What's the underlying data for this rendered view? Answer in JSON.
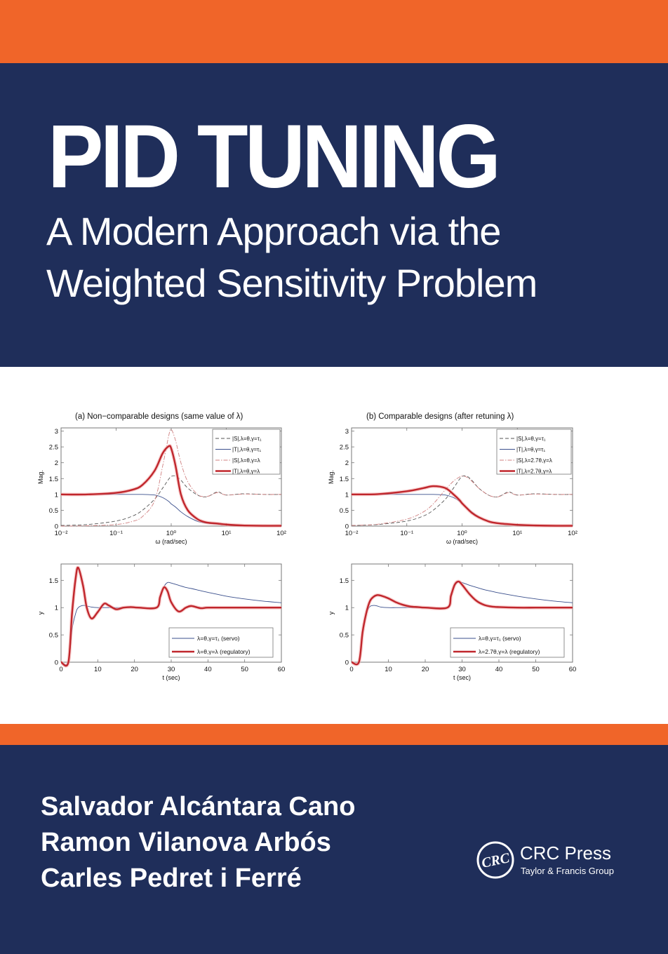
{
  "colors": {
    "accent_orange": "#f06529",
    "navy": "#1f2e5a",
    "text_on_dark": "#ffffff",
    "series_red": "#c0262c",
    "series_blue": "#3a4f8c",
    "series_gray_dashed": "#555555",
    "series_pink_dashdot": "#d08080"
  },
  "cover": {
    "title": "PID TUNING",
    "subtitle_line1": "A Modern Approach via the",
    "subtitle_line2": "Weighted Sensitivity Problem",
    "authors": [
      "Salvador Alcántara Cano",
      "Ramon Vilanova Arbós",
      "Carles Pedret i Ferré"
    ],
    "publisher": {
      "logo_text": "CRC",
      "name": "CRC Press",
      "group": "Taylor & Francis Group"
    }
  },
  "figure": {
    "panel_a_title": "(a) Non−comparable designs (same value of λ)",
    "panel_b_title": "(b) Comparable designs (after retuning λ)"
  },
  "chart_data": [
    {
      "id": "a-freq",
      "type": "line",
      "title": "(a) Non−comparable designs (same value of λ)",
      "xlabel": "ω (rad/sec)",
      "ylabel": "Mag.",
      "xscale": "log",
      "xlim": [
        0.01,
        100
      ],
      "ylim": [
        0,
        3.1
      ],
      "xticks": [
        "10⁻²",
        "10⁻¹",
        "10⁰",
        "10¹",
        "10²"
      ],
      "yticks": [
        "0",
        "0.5",
        "1",
        "1.5",
        "2",
        "2.5",
        "3"
      ],
      "legend_position": "upper right",
      "legend": [
        "|S|,λ=θ,γ=τ₁",
        "|T|,λ=θ,γ=τ₁",
        "|S|,λ=θ,γ=λ",
        "|T|,λ=θ,γ=λ"
      ],
      "x": [
        0.01,
        0.03,
        0.1,
        0.2,
        0.3,
        0.5,
        0.7,
        0.9,
        1.0,
        1.2,
        1.5,
        2,
        3,
        4,
        5,
        7,
        10,
        20,
        50,
        100
      ],
      "series": [
        {
          "name": "|S|,λ=θ,γ=τ₁",
          "style": "dashed",
          "values": [
            0.02,
            0.05,
            0.16,
            0.32,
            0.5,
            0.85,
            1.2,
            1.48,
            1.57,
            1.58,
            1.45,
            1.2,
            0.98,
            0.92,
            0.96,
            1.08,
            0.98,
            1.02,
            1.0,
            1.0
          ]
        },
        {
          "name": "|T|,λ=θ,γ=τ₁",
          "style": "solid-thin",
          "values": [
            1.0,
            1.0,
            1.0,
            1.0,
            1.0,
            0.98,
            0.9,
            0.78,
            0.7,
            0.6,
            0.45,
            0.3,
            0.15,
            0.1,
            0.08,
            0.06,
            0.04,
            0.02,
            0.01,
            0.01
          ]
        },
        {
          "name": "|S|,λ=θ,γ=λ",
          "style": "dashdot",
          "values": [
            0.0,
            0.01,
            0.05,
            0.15,
            0.3,
            0.8,
            1.9,
            2.85,
            3.05,
            2.7,
            2.0,
            1.4,
            1.0,
            0.93,
            0.96,
            1.06,
            0.98,
            1.01,
            1.0,
            1.0
          ]
        },
        {
          "name": "|T|,λ=θ,γ=λ",
          "style": "solid-thick",
          "values": [
            1.0,
            1.0,
            1.05,
            1.15,
            1.3,
            1.75,
            2.3,
            2.52,
            2.45,
            1.9,
            1.0,
            0.5,
            0.22,
            0.13,
            0.1,
            0.08,
            0.05,
            0.02,
            0.01,
            0.01
          ]
        }
      ]
    },
    {
      "id": "b-freq",
      "type": "line",
      "title": "(b) Comparable designs (after retuning λ)",
      "xlabel": "ω (rad/sec)",
      "ylabel": "Mag.",
      "xscale": "log",
      "xlim": [
        0.01,
        100
      ],
      "ylim": [
        0,
        3.1
      ],
      "xticks": [
        "10⁻²",
        "10⁻¹",
        "10⁰",
        "10¹",
        "10²"
      ],
      "yticks": [
        "0",
        "0.5",
        "1",
        "1.5",
        "2",
        "2.5",
        "3"
      ],
      "legend_position": "upper right",
      "legend": [
        "|S|,λ=θ,γ=τ₁",
        "|T|,λ=θ,γ=τ₁",
        "|S|,λ=2.7θ,γ=λ",
        "|T|,λ=2.7θ,γ=λ"
      ],
      "x": [
        0.01,
        0.03,
        0.1,
        0.2,
        0.3,
        0.5,
        0.7,
        0.9,
        1.0,
        1.2,
        1.5,
        2,
        3,
        4,
        5,
        7,
        10,
        20,
        50,
        100
      ],
      "series": [
        {
          "name": "|S|,λ=θ,γ=τ₁",
          "style": "dashed",
          "values": [
            0.02,
            0.05,
            0.16,
            0.32,
            0.5,
            0.85,
            1.2,
            1.48,
            1.57,
            1.58,
            1.45,
            1.2,
            0.98,
            0.92,
            0.96,
            1.08,
            0.98,
            1.02,
            1.0,
            1.0
          ]
        },
        {
          "name": "|T|,λ=θ,γ=τ₁",
          "style": "solid-thin",
          "values": [
            1.0,
            1.0,
            1.0,
            1.0,
            1.0,
            0.98,
            0.9,
            0.78,
            0.7,
            0.6,
            0.45,
            0.3,
            0.15,
            0.1,
            0.08,
            0.06,
            0.04,
            0.02,
            0.01,
            0.01
          ]
        },
        {
          "name": "|S|,λ=2.7θ,γ=λ",
          "style": "dashdot",
          "values": [
            0.02,
            0.06,
            0.22,
            0.45,
            0.7,
            1.15,
            1.42,
            1.55,
            1.58,
            1.55,
            1.42,
            1.2,
            0.98,
            0.92,
            0.95,
            1.06,
            0.98,
            1.01,
            1.0,
            1.0
          ]
        },
        {
          "name": "|T|,λ=2.7θ,γ=λ",
          "style": "solid-thick",
          "values": [
            1.0,
            1.01,
            1.1,
            1.2,
            1.26,
            1.2,
            1.0,
            0.82,
            0.72,
            0.58,
            0.42,
            0.28,
            0.15,
            0.1,
            0.08,
            0.06,
            0.04,
            0.02,
            0.01,
            0.01
          ]
        }
      ]
    },
    {
      "id": "a-time",
      "type": "line",
      "xlabel": "t (sec)",
      "ylabel": "y",
      "xlim": [
        0,
        60
      ],
      "ylim": [
        0,
        1.8
      ],
      "xticks": [
        "0",
        "10",
        "20",
        "30",
        "40",
        "50",
        "60"
      ],
      "yticks": [
        "0",
        "0.5",
        "1",
        "1.5"
      ],
      "legend_position": "lower right",
      "legend": [
        "λ=θ,γ=τ₁ (servo)",
        "λ=θ,γ=λ  (regulatory)"
      ],
      "x": [
        0,
        2,
        3,
        4,
        4.7,
        6,
        7,
        8.3,
        10,
        11.7,
        13,
        15,
        17,
        19,
        21,
        26,
        27,
        28,
        29,
        30,
        32,
        34,
        35.5,
        38,
        40,
        45,
        50,
        55,
        60
      ],
      "series": [
        {
          "name": "λ=θ,γ=τ₁ (servo)",
          "style": "solid-thin",
          "values": [
            0,
            0,
            0.6,
            0.9,
            1.0,
            1.04,
            1.03,
            1.01,
            1.0,
            1.0,
            1.0,
            1.0,
            1.0,
            1.0,
            1.0,
            1.0,
            1.18,
            1.38,
            1.46,
            1.45,
            1.41,
            1.37,
            1.35,
            1.31,
            1.28,
            1.21,
            1.16,
            1.12,
            1.09
          ]
        },
        {
          "name": "λ=θ,γ=λ  (regulatory)",
          "style": "solid-thick",
          "values": [
            0,
            0,
            0.9,
            1.55,
            1.73,
            1.4,
            1.0,
            0.8,
            0.92,
            1.07,
            1.04,
            0.97,
            1.0,
            1.01,
            1.0,
            1.0,
            1.2,
            1.37,
            1.3,
            1.1,
            0.93,
            1.0,
            1.03,
            0.99,
            1.0,
            1.0,
            1.0,
            1.0,
            1.0
          ]
        }
      ]
    },
    {
      "id": "b-time",
      "type": "line",
      "xlabel": "t (sec)",
      "ylabel": "y",
      "xlim": [
        0,
        60
      ],
      "ylim": [
        0,
        1.8
      ],
      "xticks": [
        "0",
        "10",
        "20",
        "30",
        "40",
        "50",
        "60"
      ],
      "yticks": [
        "0",
        "0.5",
        "1",
        "1.5"
      ],
      "legend_position": "lower right",
      "legend": [
        "λ=θ,γ=τ₁ (servo)",
        "λ=2.7θ,γ=λ  (regulatory)"
      ],
      "x": [
        0,
        2,
        3,
        4,
        5,
        6,
        7,
        8,
        10,
        12,
        14,
        16,
        18,
        20,
        26,
        27,
        28,
        29,
        30,
        32,
        34,
        36,
        38,
        40,
        45,
        50,
        55,
        60
      ],
      "series": [
        {
          "name": "λ=θ,γ=τ₁ (servo)",
          "style": "solid-thin",
          "values": [
            0,
            0,
            0.6,
            0.9,
            1.02,
            1.04,
            1.03,
            1.01,
            1.0,
            1.0,
            1.0,
            1.0,
            1.0,
            1.0,
            1.0,
            1.2,
            1.4,
            1.47,
            1.46,
            1.41,
            1.37,
            1.33,
            1.3,
            1.27,
            1.21,
            1.16,
            1.12,
            1.09
          ]
        },
        {
          "name": "λ=2.7θ,γ=λ  (regulatory)",
          "style": "solid-thick",
          "values": [
            0,
            0,
            0.55,
            0.9,
            1.12,
            1.2,
            1.23,
            1.22,
            1.17,
            1.1,
            1.05,
            1.02,
            1.01,
            1.0,
            1.0,
            1.22,
            1.42,
            1.48,
            1.42,
            1.25,
            1.12,
            1.05,
            1.02,
            1.01,
            1.0,
            1.0,
            1.0,
            1.0
          ]
        }
      ]
    }
  ]
}
